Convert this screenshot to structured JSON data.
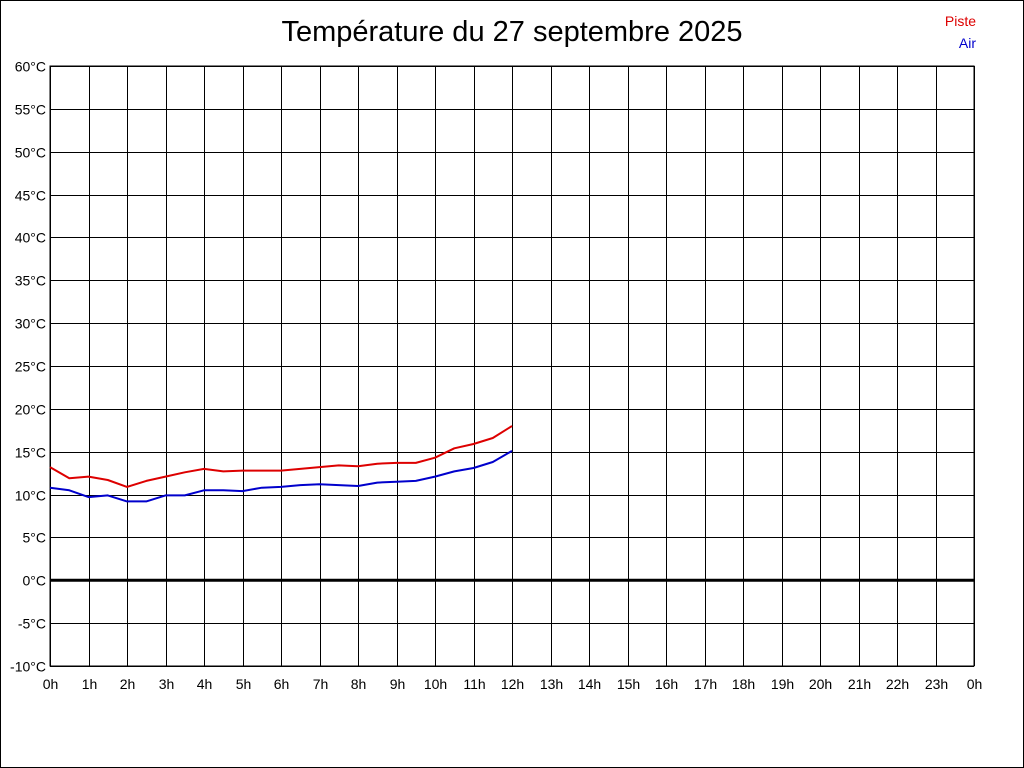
{
  "chart_data": {
    "type": "line",
    "title": "Température du 27 septembre 2025",
    "x_tick_labels": [
      "0h",
      "1h",
      "2h",
      "3h",
      "4h",
      "5h",
      "6h",
      "7h",
      "8h",
      "9h",
      "10h",
      "11h",
      "12h",
      "13h",
      "14h",
      "15h",
      "16h",
      "17h",
      "18h",
      "19h",
      "20h",
      "21h",
      "22h",
      "23h",
      "0h"
    ],
    "y_tick_labels": [
      "60°C",
      "55°C",
      "50°C",
      "45°C",
      "40°C",
      "35°C",
      "30°C",
      "25°C",
      "20°C",
      "15°C",
      "10°C",
      "5°C",
      "0°C",
      "-5°C",
      "-10°C"
    ],
    "xlim": [
      0,
      24
    ],
    "ylim": [
      -10,
      60
    ],
    "x_unit": "hour",
    "grid": true,
    "zero_line": true,
    "legend_position": "top-right",
    "series": [
      {
        "name": "Piste",
        "color": "#dd0000",
        "x": [
          0,
          0.5,
          1,
          1.5,
          2,
          2.5,
          3,
          3.5,
          4,
          4.5,
          5,
          5.5,
          6,
          6.5,
          7,
          7.5,
          8,
          8.5,
          9,
          9.5,
          10,
          10.5,
          11,
          11.5,
          12
        ],
        "values": [
          13.2,
          11.9,
          12.1,
          11.7,
          10.9,
          11.6,
          12.1,
          12.6,
          13.0,
          12.7,
          12.8,
          12.8,
          12.8,
          13.0,
          13.2,
          13.4,
          13.3,
          13.6,
          13.7,
          13.7,
          14.3,
          15.4,
          15.9,
          16.6,
          18.0
        ]
      },
      {
        "name": "Air",
        "color": "#0000cc",
        "x": [
          0,
          0.5,
          1,
          1.5,
          2,
          2.5,
          3,
          3.5,
          4,
          4.5,
          5,
          5.5,
          6,
          6.5,
          7,
          7.5,
          8,
          8.5,
          9,
          9.5,
          10,
          10.5,
          11,
          11.5,
          12
        ],
        "values": [
          10.8,
          10.5,
          9.7,
          9.9,
          9.2,
          9.2,
          9.9,
          9.9,
          10.5,
          10.5,
          10.4,
          10.8,
          10.9,
          11.1,
          11.2,
          11.1,
          11.0,
          11.4,
          11.5,
          11.6,
          12.1,
          12.7,
          13.1,
          13.8,
          15.1
        ]
      }
    ]
  }
}
